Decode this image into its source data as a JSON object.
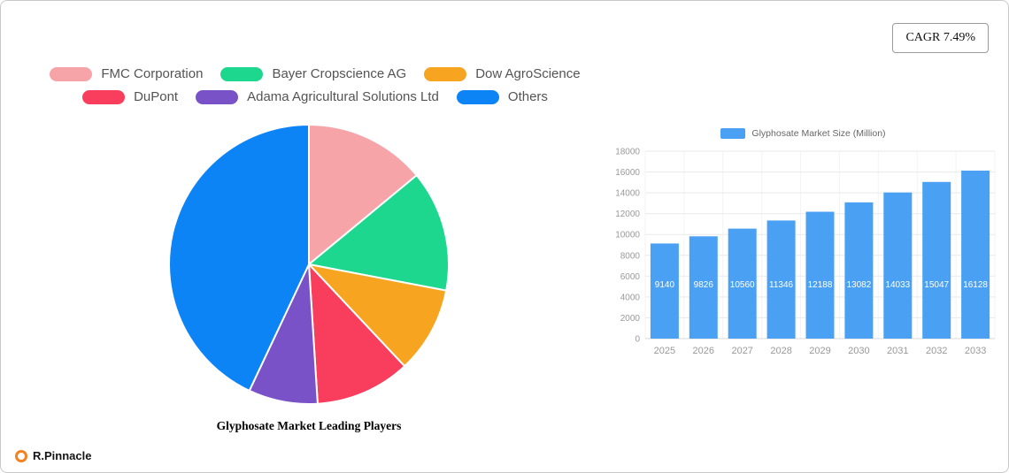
{
  "badge": {
    "cagr_label": "CAGR 7.49%"
  },
  "brand": {
    "name": "R.Pinnacle",
    "icon_color": "#F58220"
  },
  "chart_data": [
    {
      "type": "pie",
      "title": "Glyphosate Market Leading Players",
      "legend_position": "top",
      "legend_rows": [
        [
          0,
          1,
          2
        ],
        [
          3,
          4,
          5
        ]
      ],
      "segments": [
        {
          "label": "FMC Corporation",
          "value": 14,
          "color": "#F7A4A9"
        },
        {
          "label": "Bayer Cropscience AG",
          "value": 14,
          "color": "#1ED78F"
        },
        {
          "label": "Dow AgroScience",
          "value": 10,
          "color": "#F7A521"
        },
        {
          "label": "DuPont",
          "value": 11,
          "color": "#F93D5C"
        },
        {
          "label": "Adama Agricultural Solutions Ltd",
          "value": 8,
          "color": "#7A52C8"
        },
        {
          "label": "Others",
          "value": 43,
          "color": "#0C84F5"
        }
      ]
    },
    {
      "type": "bar",
      "legend": "Glyphosate Market Size (Million)",
      "categories": [
        "2025",
        "2026",
        "2027",
        "2028",
        "2029",
        "2030",
        "2031",
        "2032",
        "2033"
      ],
      "values": [
        9140,
        9826,
        10560,
        11346,
        12188,
        13082,
        14033,
        15047,
        16128
      ],
      "bar_color": "#4AA1F3",
      "value_label_color": "#ffffff",
      "ylim": [
        0,
        18000
      ],
      "yticks": [
        0,
        2000,
        4000,
        6000,
        8000,
        10000,
        12000,
        14000,
        16000,
        18000
      ],
      "grid": true,
      "legend_position": "top"
    }
  ]
}
